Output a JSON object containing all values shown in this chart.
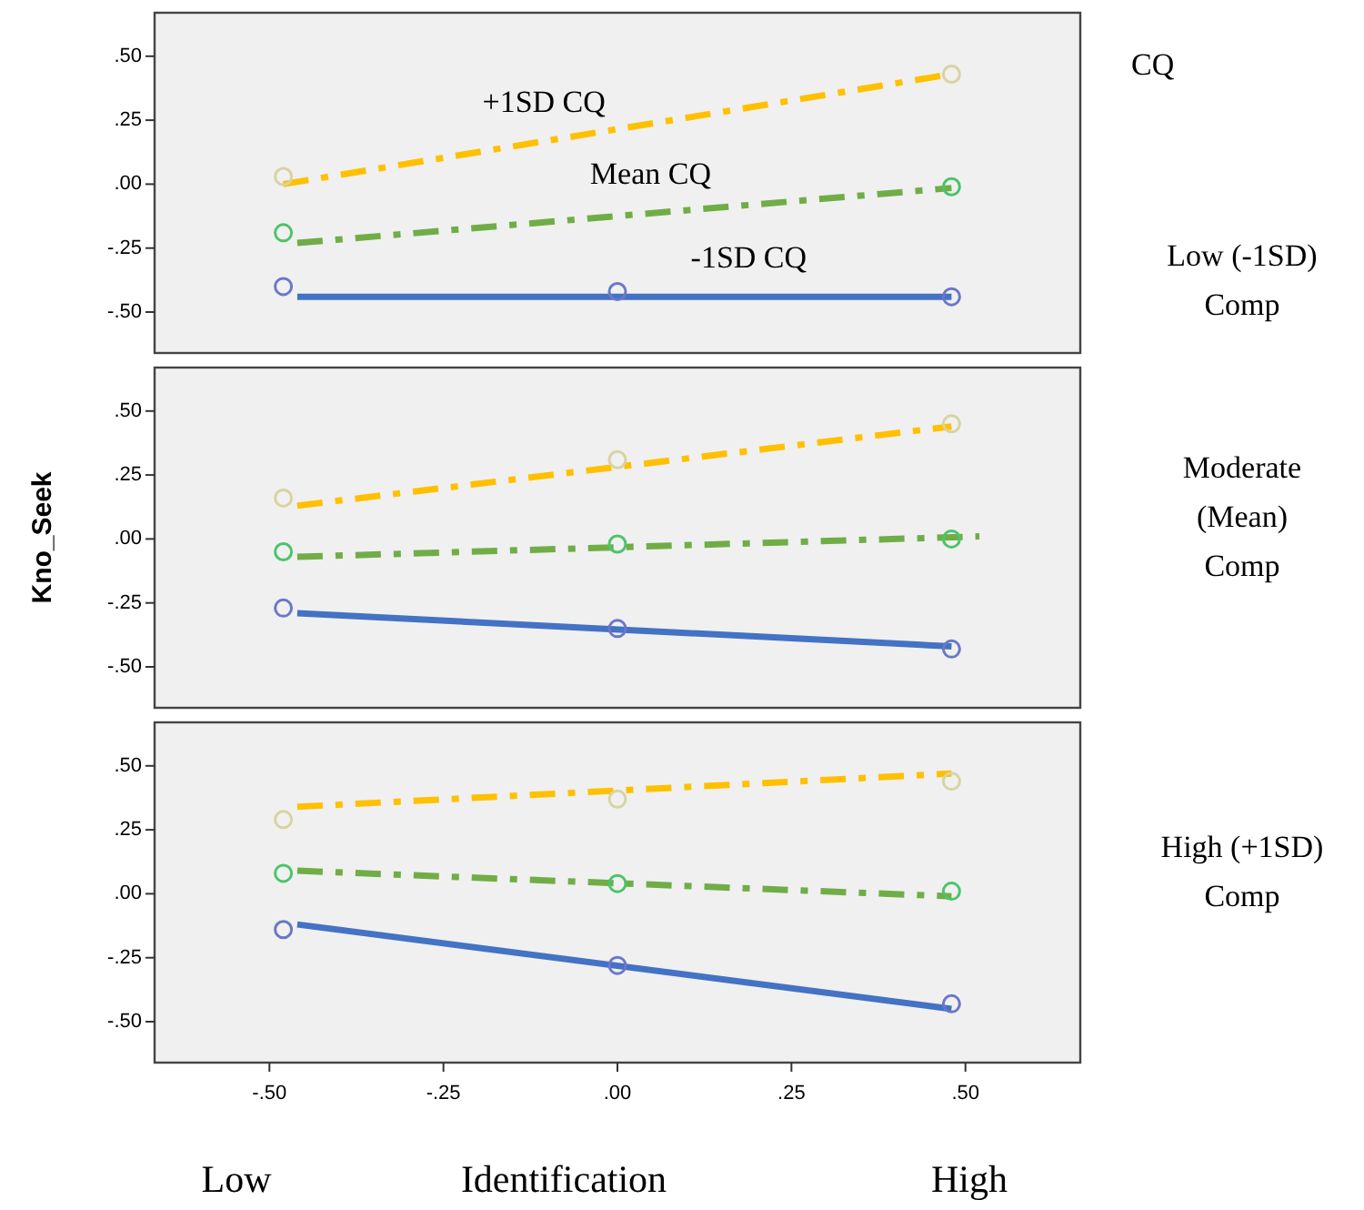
{
  "chart_data": [
    {
      "type": "scatter",
      "xlim": [
        -0.665,
        0.665
      ],
      "ylim": [
        -0.66,
        0.67
      ],
      "yticks": [
        {
          "value": -0.5,
          "label": "-.50"
        },
        {
          "value": -0.25,
          "label": "-.25"
        },
        {
          "value": 0,
          "label": ".00"
        },
        {
          "value": 0.25,
          "label": ".25"
        },
        {
          "value": 0.5,
          "label": ".50"
        }
      ],
      "tick_labels": "y",
      "marker": "circle",
      "annotations": [
        "CQ",
        "Low (-1SD)\nComp"
      ],
      "series": [
        {
          "type": "line",
          "name": "+1SD CQ",
          "color": "#ffc000",
          "line_style": "dashed",
          "marker": "none",
          "x": [
            -0.48,
            0.48
          ],
          "values": [
            0.0,
            0.43
          ]
        },
        {
          "type": "line",
          "name": "Mean CQ",
          "color": "#70ad47",
          "line_style": "dashed",
          "marker": "none",
          "x": [
            -0.46,
            0.48
          ],
          "values": [
            -0.23,
            -0.015
          ]
        },
        {
          "type": "line",
          "name": "-1SD CQ",
          "color": "#4472c4",
          "line_style": "solid",
          "marker": "none",
          "x": [
            -0.46,
            0.48
          ],
          "values": [
            -0.44,
            -0.44
          ]
        },
        {
          "type": "scatter",
          "color": "#d8d3a2",
          "x": [
            -0.48,
            0.48
          ],
          "values": [
            0.03,
            0.43
          ]
        },
        {
          "type": "scatter",
          "color": "#4cc46a",
          "x": [
            -0.48,
            0.48
          ],
          "values": [
            -0.19,
            -0.01
          ]
        },
        {
          "type": "scatter",
          "color": "#6a78c8",
          "x": [
            -0.48,
            0,
            0.48
          ],
          "values": [
            -0.4,
            -0.42,
            -0.44
          ]
        }
      ]
    },
    {
      "type": "scatter",
      "ylabel": "Kno_Seek",
      "xlim": [
        -0.665,
        0.665
      ],
      "ylim": [
        -0.66,
        0.67
      ],
      "yticks": [
        {
          "value": -0.5,
          "label": "-.50"
        },
        {
          "value": -0.25,
          "label": "-.25"
        },
        {
          "value": 0,
          "label": ".00"
        },
        {
          "value": 0.25,
          "label": ".25"
        },
        {
          "value": 0.5,
          "label": ".50"
        }
      ],
      "tick_labels": "y",
      "marker": "circle",
      "annotations": [
        "Moderate\n(Mean)\nComp"
      ],
      "series": [
        {
          "type": "line",
          "color": "#ffc000",
          "line_style": "dashed",
          "marker": "none",
          "x": [
            -0.46,
            0.48
          ],
          "values": [
            0.13,
            0.44
          ]
        },
        {
          "type": "line",
          "color": "#70ad47",
          "line_style": "dashed",
          "marker": "none",
          "x": [
            -0.46,
            0.52
          ],
          "values": [
            -0.07,
            0.01
          ]
        },
        {
          "type": "line",
          "color": "#4472c4",
          "line_style": "solid",
          "marker": "none",
          "x": [
            -0.46,
            0.48
          ],
          "values": [
            -0.29,
            -0.42
          ]
        },
        {
          "type": "scatter",
          "color": "#d8d3a2",
          "x": [
            -0.48,
            0,
            0.48
          ],
          "values": [
            0.16,
            0.31,
            0.45
          ]
        },
        {
          "type": "scatter",
          "color": "#4cc46a",
          "x": [
            -0.48,
            0,
            0.48
          ],
          "values": [
            -0.05,
            -0.02,
            0.0
          ]
        },
        {
          "type": "scatter",
          "color": "#6a78c8",
          "x": [
            -0.48,
            0,
            0.48
          ],
          "values": [
            -0.27,
            -0.35,
            -0.43
          ]
        }
      ]
    },
    {
      "type": "scatter",
      "xlabel": "Identification",
      "xlim": [
        -0.665,
        0.665
      ],
      "ylim": [
        -0.66,
        0.67
      ],
      "xticks": [
        {
          "value": -0.5,
          "label": "-.50"
        },
        {
          "value": -0.25,
          "label": "-.25"
        },
        {
          "value": 0,
          "label": ".00"
        },
        {
          "value": 0.25,
          "label": ".25"
        },
        {
          "value": 0.5,
          "label": ".50"
        }
      ],
      "yticks": [
        {
          "value": -0.5,
          "label": "-.50"
        },
        {
          "value": -0.25,
          "label": "-.25"
        },
        {
          "value": 0,
          "label": ".00"
        },
        {
          "value": 0.25,
          "label": ".25"
        },
        {
          "value": 0.5,
          "label": ".50"
        }
      ],
      "marker": "circle",
      "annotations": [
        "High (+1SD)\nComp",
        "Low",
        "High"
      ],
      "series": [
        {
          "type": "line",
          "color": "#ffc000",
          "line_style": "dashed",
          "marker": "none",
          "x": [
            -0.46,
            0.48
          ],
          "values": [
            0.34,
            0.47
          ]
        },
        {
          "type": "line",
          "color": "#70ad47",
          "line_style": "dashed",
          "marker": "none",
          "x": [
            -0.46,
            0.48
          ],
          "values": [
            0.09,
            -0.01
          ]
        },
        {
          "type": "line",
          "color": "#4472c4",
          "line_style": "solid",
          "marker": "none",
          "x": [
            -0.46,
            0.48
          ],
          "values": [
            -0.12,
            -0.45
          ]
        },
        {
          "type": "scatter",
          "color": "#d8d3a2",
          "x": [
            -0.48,
            0,
            0.48
          ],
          "values": [
            0.29,
            0.37,
            0.44
          ]
        },
        {
          "type": "scatter",
          "color": "#4cc46a",
          "x": [
            -0.48,
            0,
            0.48
          ],
          "values": [
            0.08,
            0.04,
            0.01
          ]
        },
        {
          "type": "scatter",
          "color": "#6a78c8",
          "x": [
            -0.48,
            0,
            0.48
          ],
          "values": [
            -0.14,
            -0.28,
            -0.43
          ]
        }
      ]
    }
  ]
}
